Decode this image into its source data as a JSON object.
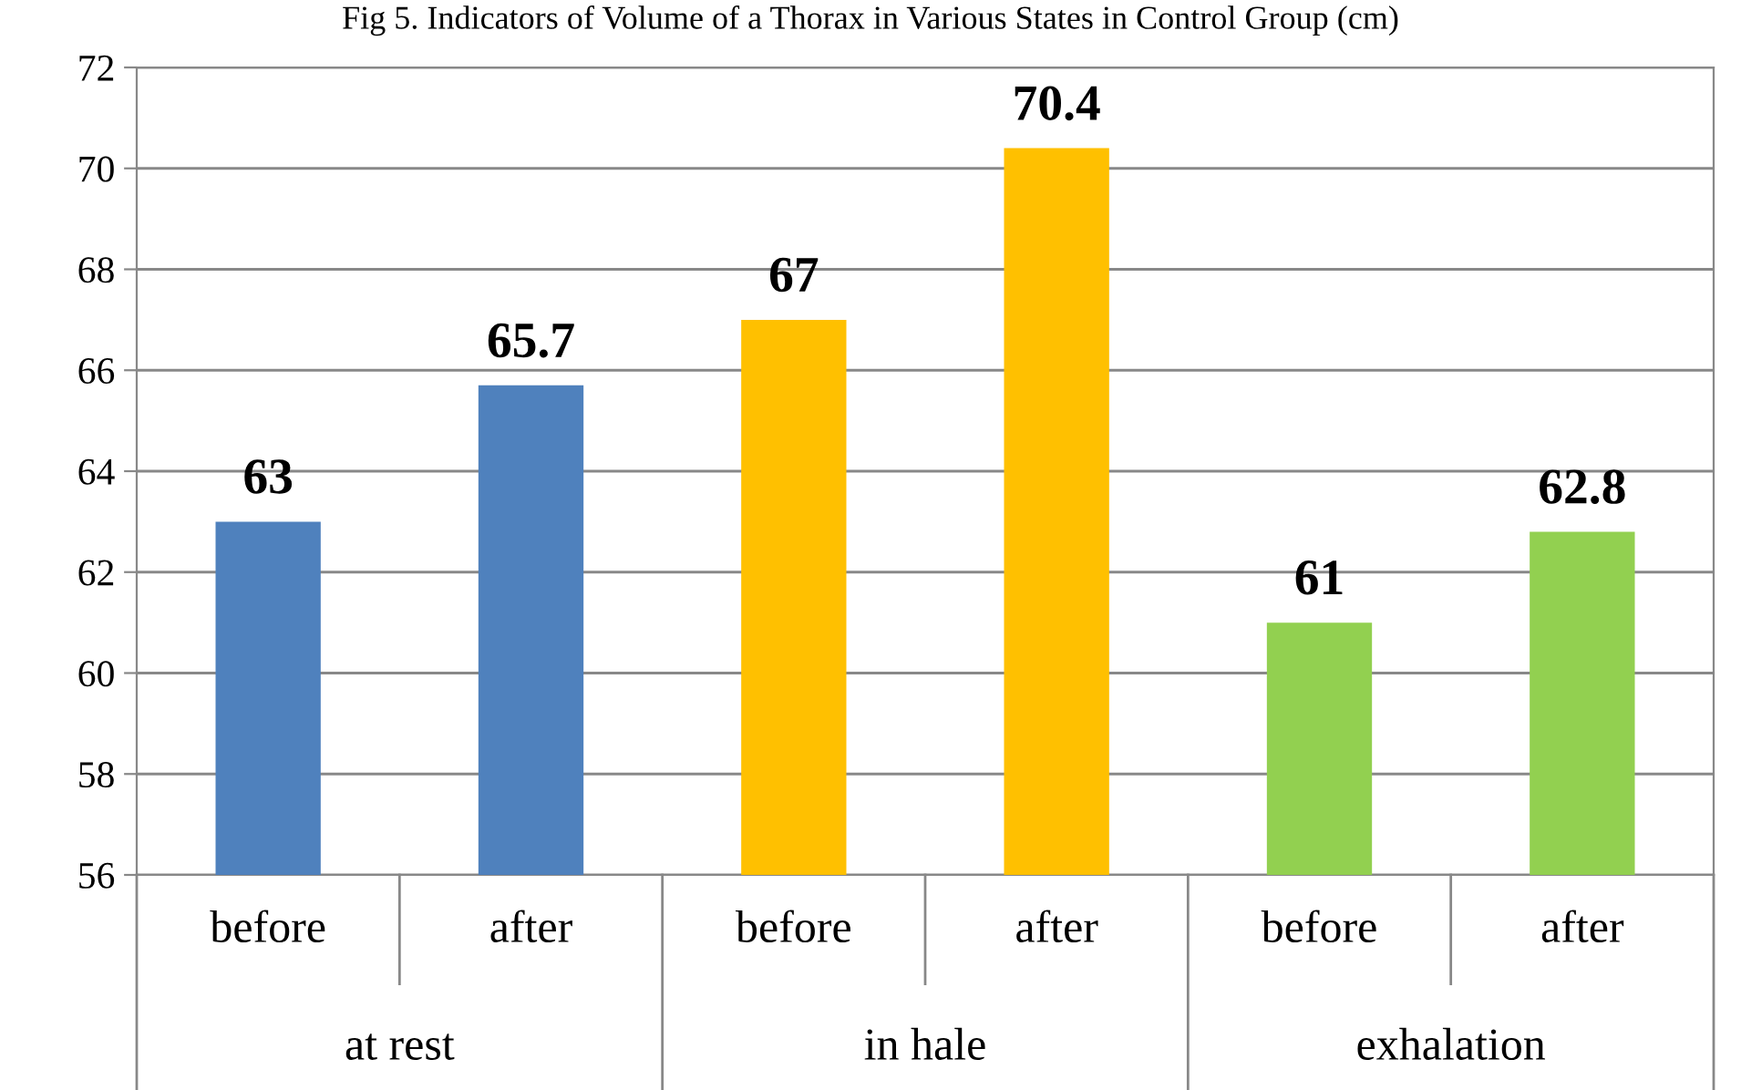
{
  "chart_data": {
    "type": "bar",
    "title": "Fig 5. Indicators of Volume of a Thorax in Various States in Control Group (cm)",
    "categories": [
      "before",
      "after",
      "before",
      "after",
      "before",
      "after"
    ],
    "values": [
      63,
      65.7,
      67,
      70.4,
      61,
      62.8
    ],
    "colors": [
      "#4f81bd",
      "#4f81bd",
      "#ffc000",
      "#ffc000",
      "#92d050",
      "#92d050"
    ],
    "annotations": [
      "at rest",
      "in hale",
      "exhalation"
    ],
    "ylim": [
      56,
      72
    ],
    "yticks": [
      56,
      58,
      60,
      62,
      64,
      66,
      68,
      70,
      72
    ],
    "grid": "y",
    "data_labels": true
  }
}
